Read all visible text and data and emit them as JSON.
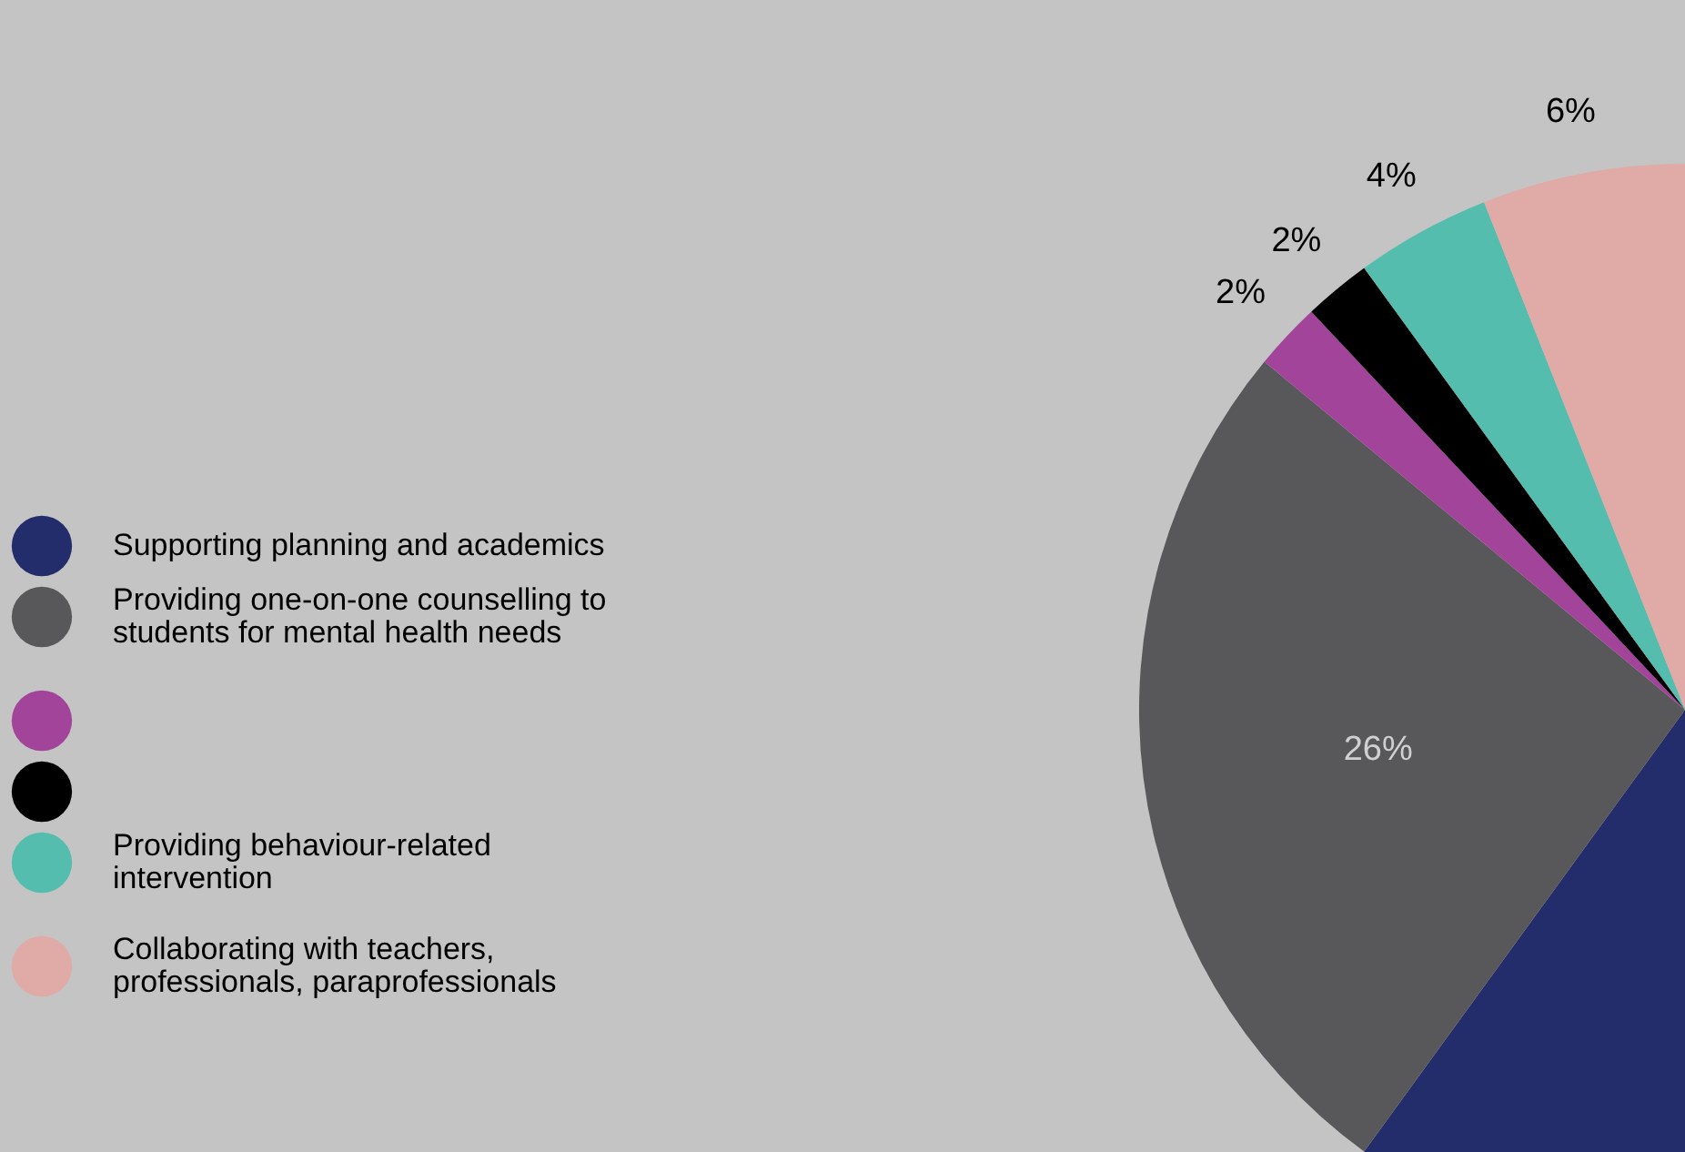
{
  "chart_data": {
    "type": "pie",
    "categories": [
      "Supporting planning and academics",
      "Providing one-on-one counselling to students for mental health needs",
      null,
      null,
      "Providing behaviour-related intervention",
      "Collaborating with teachers, professionals, paraprofessionals"
    ],
    "values": [
      60,
      26,
      2,
      2,
      4,
      6
    ],
    "colors": [
      "#232d6b",
      "#58585a",
      "#a2449a",
      "#000000",
      "#55bdad",
      "#e0aaa6"
    ],
    "value_labels": [
      null,
      "26%",
      "2%",
      "2%",
      "4%",
      "6%"
    ],
    "legend": "left"
  }
}
